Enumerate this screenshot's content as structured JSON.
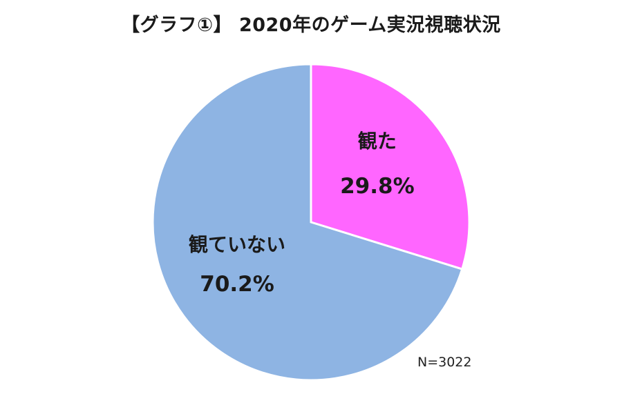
{
  "chart_data": {
    "type": "pie",
    "title": "【グラフ①】 2020年のゲーム実況視聴状況",
    "slices": [
      {
        "label": "観た",
        "value": 29.8,
        "value_label": "29.8%",
        "color": "#ff66ff"
      },
      {
        "label": "観ていない",
        "value": 70.2,
        "value_label": "70.2%",
        "color": "#8eb4e3"
      }
    ],
    "note": "N=3022",
    "start_angle": "12 o'clock",
    "direction": "clockwise",
    "legend": "none"
  }
}
